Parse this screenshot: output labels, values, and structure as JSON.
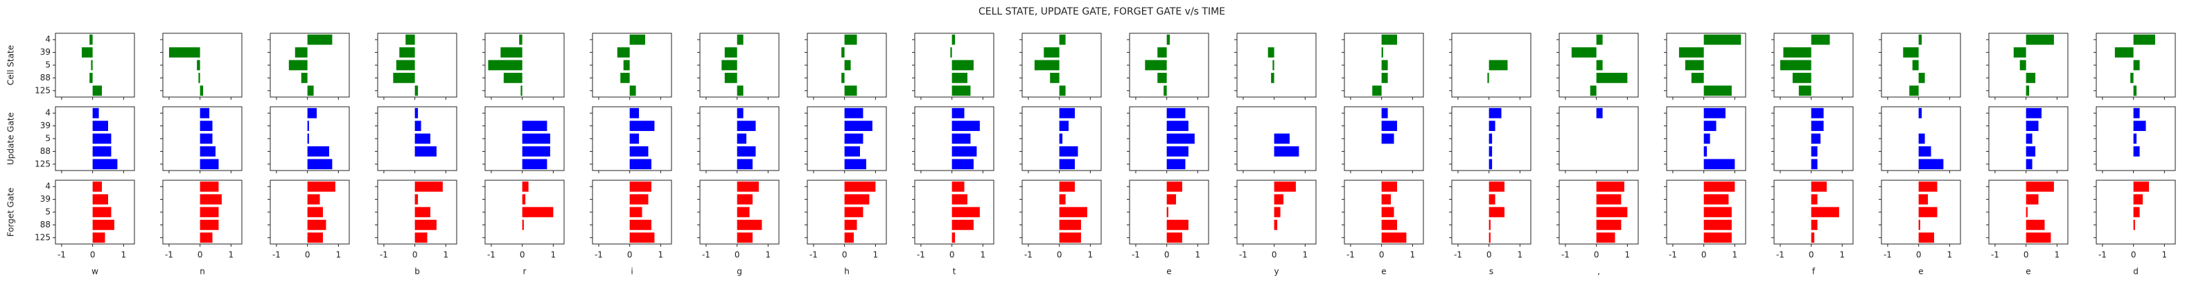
{
  "chart_data": {
    "type": "bar",
    "orientation": "horizontal",
    "title": "CELL STATE, UPDATE GATE, FORGET GATE v/s TIME",
    "categories": [
      "4",
      "39",
      "5",
      "88",
      "125"
    ],
    "xlim": [
      -1.2,
      1.35
    ],
    "xticks": [
      -1,
      0,
      1
    ],
    "steps": [
      "w",
      "n",
      null,
      "b",
      "r",
      "i",
      "g",
      "h",
      "t",
      null,
      "e",
      "y",
      "e",
      "s",
      ",",
      null,
      "f",
      "e",
      "e",
      "d"
    ],
    "rows": [
      {
        "name": "Cell State",
        "color": "#008000",
        "values": [
          [
            -0.1,
            -0.35,
            -0.05,
            -0.1,
            0.3
          ],
          [
            0,
            -1.0,
            -0.1,
            -0.05,
            0.1
          ],
          [
            0.8,
            -0.4,
            -0.6,
            -0.2,
            0.2
          ],
          [
            -0.3,
            -0.5,
            -0.6,
            -0.7,
            0.1
          ],
          [
            -0.1,
            -0.7,
            -1.1,
            -0.6,
            -0.05
          ],
          [
            0.5,
            -0.4,
            -0.2,
            -0.3,
            0.2
          ],
          [
            0.2,
            -0.4,
            -0.5,
            -0.4,
            0.2
          ],
          [
            0.4,
            -0.1,
            0.2,
            -0.1,
            0.4
          ],
          [
            0.1,
            -0.05,
            0.7,
            0.5,
            0.6
          ],
          [
            0.2,
            -0.5,
            -0.8,
            -0.3,
            0.2
          ],
          [
            0.1,
            -0.3,
            -0.7,
            -0.3,
            -0.1
          ],
          [
            0,
            -0.2,
            -0.05,
            -0.1,
            0
          ],
          [
            0.5,
            0.05,
            0.2,
            0.2,
            -0.3
          ],
          [
            0,
            0,
            0.6,
            -0.05,
            0
          ],
          [
            0.2,
            -0.8,
            0.2,
            1.0,
            -0.2
          ],
          [
            1.2,
            -0.8,
            -0.6,
            -0.4,
            0.9
          ],
          [
            0.6,
            -0.9,
            -1.0,
            -0.6,
            -0.4
          ],
          [
            0.1,
            -0.5,
            -0.2,
            0.2,
            -0.3
          ],
          [
            0.9,
            -0.4,
            -0.2,
            0.3,
            0.1
          ],
          [
            0.7,
            -0.6,
            0.2,
            -0.1,
            0.1
          ]
        ]
      },
      {
        "name": "Update Gate",
        "color": "#0000ff",
        "values": [
          [
            0.2,
            0.5,
            0.6,
            0.6,
            0.8
          ],
          [
            0.3,
            0.4,
            0.4,
            0.5,
            0.6
          ],
          [
            0.3,
            0.05,
            0.05,
            0.7,
            0.8
          ],
          [
            0.1,
            0.2,
            0.5,
            0.7,
            0
          ],
          [
            0,
            0.8,
            0.9,
            0.9,
            0.8
          ],
          [
            0.3,
            0.8,
            0.3,
            0.6,
            0.7
          ],
          [
            0.2,
            0.6,
            0.3,
            0.6,
            0.5
          ],
          [
            0.6,
            0.9,
            0.6,
            0.5,
            0.7
          ],
          [
            0.4,
            0.9,
            0.6,
            0.8,
            0.7
          ],
          [
            0.5,
            0.3,
            0.1,
            0.6,
            0.5
          ],
          [
            0.6,
            0.7,
            0.9,
            0.7,
            0.6
          ],
          [
            0,
            0,
            0.5,
            0.8,
            0
          ],
          [
            0.2,
            0.5,
            0.4,
            0,
            0
          ],
          [
            0.4,
            0.2,
            0.1,
            0.1,
            0.1
          ],
          [
            0.2,
            0,
            0,
            0,
            0
          ],
          [
            0.7,
            0.4,
            0.2,
            0.1,
            1.0
          ],
          [
            0.4,
            0.4,
            0.3,
            0.2,
            0.2
          ],
          [
            0.1,
            0,
            0.2,
            0.4,
            0.8
          ],
          [
            0.5,
            0.4,
            0.2,
            0.3,
            0.2
          ],
          [
            0.2,
            0.4,
            0.1,
            0.2,
            0
          ]
        ]
      },
      {
        "name": "Forget Gate",
        "color": "#ff0000",
        "values": [
          [
            0.3,
            0.5,
            0.6,
            0.7,
            0.4
          ],
          [
            0.6,
            0.7,
            0.6,
            0.6,
            0.4
          ],
          [
            0.9,
            0.4,
            0.5,
            0.6,
            0.5
          ],
          [
            0.9,
            0.1,
            0.5,
            0.7,
            0.4
          ],
          [
            0.2,
            0.1,
            1.0,
            0.05,
            0
          ],
          [
            0.7,
            0.6,
            0.4,
            0.7,
            0.8
          ],
          [
            0.7,
            0.5,
            0.4,
            0.8,
            0.5
          ],
          [
            1.0,
            0.8,
            0.6,
            0.4,
            0.3
          ],
          [
            0.4,
            0.5,
            0.9,
            0.7,
            0.1
          ],
          [
            0.5,
            0.2,
            0.9,
            0.7,
            0.7
          ],
          [
            0.5,
            0.3,
            0.05,
            0.7,
            0.5
          ],
          [
            0.7,
            0.3,
            0.2,
            0.1,
            0
          ],
          [
            0.5,
            0.3,
            0.4,
            0.5,
            0.8
          ],
          [
            0.5,
            0.2,
            0.5,
            0.05,
            0.05
          ],
          [
            0.9,
            0.8,
            1.0,
            0.8,
            0.6
          ],
          [
            1.0,
            0.8,
            0.9,
            0.9,
            0.9
          ],
          [
            0.5,
            0.2,
            0.9,
            0.2,
            0.1
          ],
          [
            0.6,
            0.3,
            0.6,
            0.05,
            0.5
          ],
          [
            0.9,
            0.4,
            0.05,
            0.6,
            0.8
          ],
          [
            0.5,
            0.3,
            0.2,
            0.05,
            0
          ]
        ]
      }
    ]
  }
}
